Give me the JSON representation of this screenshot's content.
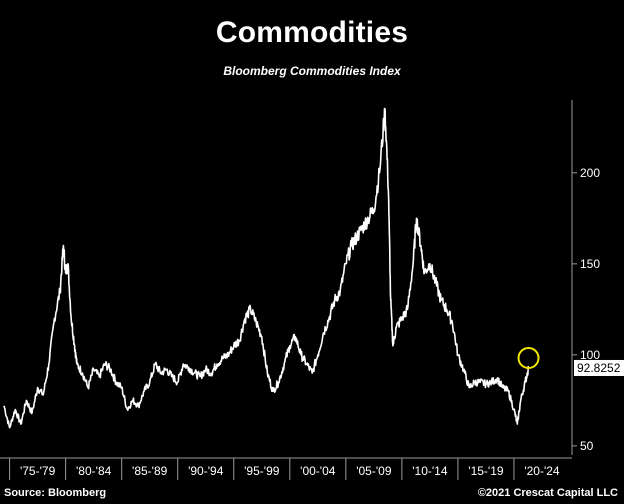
{
  "header": {
    "title": "Commodities",
    "subtitle": "Bloomberg Commodities Index"
  },
  "footer": {
    "source": "Source: Bloomberg",
    "copyright": "©2021 Crescat Capital LLC"
  },
  "colors": {
    "background": "#000000",
    "line": "#ffffff",
    "highlight_circle": "#f2e600",
    "axis": "#9a9a9a"
  },
  "chart_data": {
    "type": "line",
    "title": "Commodities",
    "subtitle": "Bloomberg Commodities Index",
    "xlabel": "",
    "ylabel": "",
    "x_tick_labels": [
      "'75-'79",
      "'80-'84",
      "'85-'89",
      "'90-'94",
      "'95-'99",
      "'00-'04",
      "'05-'09",
      "'10-'14",
      "'15-'19",
      "'20-'24"
    ],
    "y_ticks": [
      50,
      100,
      150,
      200
    ],
    "ylim": [
      45,
      240
    ],
    "xlim": [
      1974.5,
      2025.0
    ],
    "y_axis_side": "right",
    "grid": false,
    "last_value_label": "92.8252",
    "highlight": {
      "shape": "circle",
      "x": 2021.3,
      "y": 92.8
    },
    "series": [
      {
        "x": [
          1974.5,
          1975.0,
          1975.5,
          1976.0,
          1976.5,
          1977.0,
          1977.5,
          1978.0,
          1978.5,
          1979.0,
          1979.5,
          1979.8,
          1980.0,
          1980.2,
          1980.5,
          1980.8,
          1981.0,
          1981.5,
          1982.0,
          1982.5,
          1983.0,
          1983.5,
          1984.0,
          1984.5,
          1985.0,
          1985.5,
          1986.0,
          1986.5,
          1987.0,
          1987.5,
          1988.0,
          1988.5,
          1989.0,
          1989.5,
          1990.0,
          1990.5,
          1991.0,
          1991.5,
          1992.0,
          1992.5,
          1993.0,
          1993.5,
          1994.0,
          1994.5,
          1995.0,
          1995.5,
          1996.0,
          1996.5,
          1997.0,
          1997.5,
          1998.0,
          1998.5,
          1999.0,
          1999.5,
          2000.0,
          2000.5,
          2001.0,
          2001.5,
          2002.0,
          2002.5,
          2003.0,
          2003.5,
          2004.0,
          2004.5,
          2005.0,
          2005.5,
          2006.0,
          2006.5,
          2007.0,
          2007.5,
          2008.0,
          2008.5,
          2008.8,
          2009.0,
          2009.2,
          2009.5,
          2010.0,
          2010.5,
          2011.0,
          2011.3,
          2011.7,
          2012.0,
          2012.5,
          2013.0,
          2013.5,
          2014.0,
          2014.5,
          2015.0,
          2015.5,
          2016.0,
          2016.5,
          2017.0,
          2017.5,
          2018.0,
          2018.5,
          2019.0,
          2019.5,
          2020.0,
          2020.3,
          2020.6,
          2021.0,
          2021.3
        ],
        "values": [
          72,
          60,
          70,
          62,
          75,
          68,
          82,
          78,
          95,
          120,
          135,
          160,
          145,
          150,
          120,
          105,
          95,
          90,
          82,
          92,
          88,
          95,
          92,
          85,
          82,
          70,
          75,
          72,
          80,
          85,
          95,
          90,
          92,
          88,
          85,
          95,
          93,
          90,
          88,
          92,
          90,
          95,
          98,
          100,
          105,
          108,
          120,
          125,
          118,
          110,
          90,
          80,
          85,
          95,
          105,
          110,
          100,
          95,
          90,
          100,
          112,
          120,
          130,
          135,
          150,
          160,
          165,
          170,
          175,
          180,
          200,
          235,
          190,
          130,
          105,
          115,
          120,
          125,
          150,
          175,
          160,
          145,
          150,
          140,
          130,
          125,
          118,
          100,
          92,
          82,
          85,
          85,
          84,
          85,
          87,
          82,
          80,
          70,
          62,
          75,
          85,
          92.8
        ]
      }
    ]
  }
}
